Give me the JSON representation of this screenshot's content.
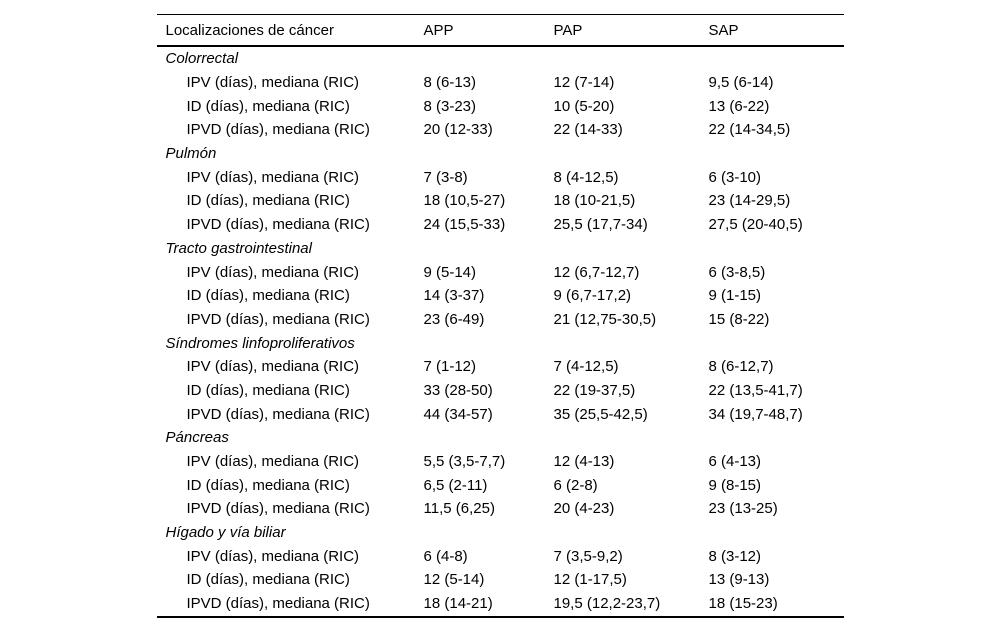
{
  "page_type": "journal-article-table",
  "colors": {
    "text": "#000000",
    "background": "#ffffff",
    "rule": "#000000"
  },
  "table": {
    "columns": [
      "Localizaciones de cáncer",
      "APP",
      "PAP",
      "SAP"
    ],
    "sections": [
      {
        "name": "Colorrectal",
        "rows": [
          {
            "cells": [
              "IPV (días), mediana (RIC)",
              "8 (6-13)",
              "12 (7-14)",
              "9,5 (6-14)"
            ]
          },
          {
            "cells": [
              "ID (días), mediana (RIC)",
              "8 (3-23)",
              "10 (5-20)",
              "13 (6-22)"
            ]
          },
          {
            "cells": [
              "IPVD (días), mediana (RIC)",
              "20 (12-33)",
              "22 (14-33)",
              "22 (14-34,5)"
            ]
          }
        ]
      },
      {
        "name": "Pulmón",
        "rows": [
          {
            "cells": [
              "IPV (días), mediana (RIC)",
              "7 (3-8)",
              "8 (4-12,5)",
              "6 (3-10)"
            ]
          },
          {
            "cells": [
              "ID (días), mediana (RIC)",
              "18 (10,5-27)",
              "18 (10-21,5)",
              "23 (14-29,5)"
            ]
          },
          {
            "cells": [
              "IPVD (días), mediana (RIC)",
              "24 (15,5-33)",
              "25,5 (17,7-34)",
              "27,5 (20-40,5)"
            ]
          }
        ]
      },
      {
        "name": "Tracto gastrointestinal",
        "rows": [
          {
            "cells": [
              "IPV (días), mediana (RIC)",
              "9 (5-14)",
              "12 (6,7-12,7)",
              "6 (3-8,5)"
            ]
          },
          {
            "cells": [
              "ID (días), mediana (RIC)",
              "14 (3-37)",
              "9 (6,7-17,2)",
              "9 (1-15)"
            ]
          },
          {
            "cells": [
              "IPVD (días), mediana (RIC)",
              "23 (6-49)",
              "21 (12,75-30,5)",
              "15 (8-22)"
            ]
          }
        ]
      },
      {
        "name": "Síndromes linfoproliferativos",
        "rows": [
          {
            "cells": [
              "IPV (días), mediana (RIC)",
              "7 (1-12)",
              "7 (4-12,5)",
              "8 (6-12,7)"
            ]
          },
          {
            "cells": [
              "ID (días), mediana (RIC)",
              "33 (28-50)",
              "22 (19-37,5)",
              "22 (13,5-41,7)"
            ]
          },
          {
            "cells": [
              "IPVD (días), mediana (RIC)",
              "44 (34-57)",
              "35 (25,5-42,5)",
              "34 (19,7-48,7)"
            ]
          }
        ]
      },
      {
        "name": "Páncreas",
        "rows": [
          {
            "cells": [
              "IPV (días), mediana (RIC)",
              "5,5 (3,5-7,7)",
              "12 (4-13)",
              "6 (4-13)"
            ]
          },
          {
            "cells": [
              "ID (días), mediana (RIC)",
              "6,5 (2-11)",
              "6 (2-8)",
              "9 (8-15)"
            ]
          },
          {
            "cells": [
              "IPVD (días), mediana (RIC)",
              "11,5 (6,25)",
              "20 (4-23)",
              "23 (13-25)"
            ]
          }
        ]
      },
      {
        "name": "Hígado y vía biliar",
        "rows": [
          {
            "cells": [
              "IPV (días), mediana (RIC)",
              "6 (4-8)",
              "7 (3,5-9,2)",
              "8 (3-12)"
            ]
          },
          {
            "cells": [
              "ID (días), mediana (RIC)",
              "12 (5-14)",
              "12 (1-17,5)",
              "13 (9-13)"
            ]
          },
          {
            "cells": [
              "IPVD (días), mediana (RIC)",
              "18 (14-21)",
              "19,5 (12,2-23,7)",
              "18 (15-23)"
            ]
          }
        ]
      }
    ]
  }
}
